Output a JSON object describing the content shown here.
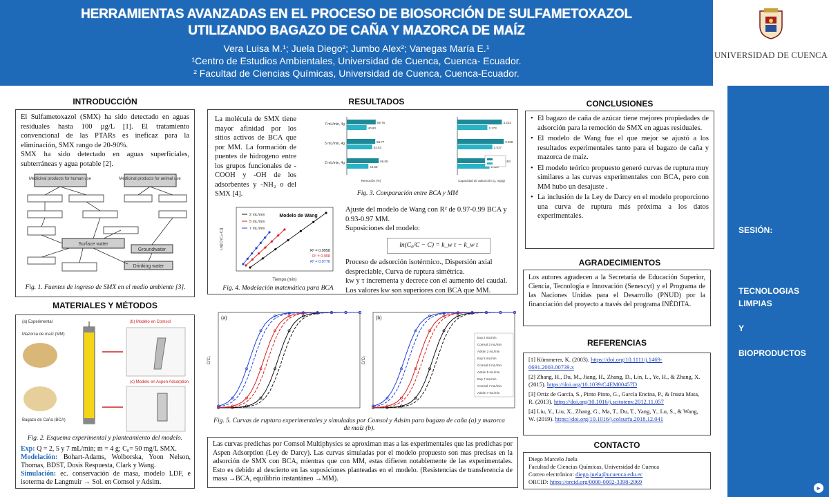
{
  "header": {
    "title_line1": "HERRAMIENTAS AVANZADAS EN EL PROCESO DE BIOSORCIÓN DE SULFAMETOXAZOL",
    "title_line2": "UTILIZANDO BAGAZO DE CAÑA Y MAZORCA DE MAÍZ",
    "authors": "Vera Luisa M.¹; Juela Diego²; Jumbo Alex²; Vanegas María E.¹",
    "affiliation1": "¹Centro de Estudios Ambientales, Universidad de Cuenca, Cuenca- Ecuador.",
    "affiliation2": "² Facultad de Ciencias Químicas, Universidad de Cuenca, Cuenca-Ecuador."
  },
  "logo": {
    "name": "UNIVERSIDAD DE CUENCA"
  },
  "sidebar": {
    "session_label": "SESIÓN:",
    "line1": "TECNOLOGIAS",
    "line2": "LIMPIAS",
    "line3": "Y",
    "line4": "BIOPRODUCTOS"
  },
  "intro": {
    "title": "INTRODUCCIÓN",
    "text1": "El Sulfametoxazol (SMX) ha sido detectado en aguas residuales hasta 100 µg/L [1]. El tratamiento convencional de las PTARs es ineficaz para la eliminación, SMX rango de 20-90%.",
    "text2": "SMX ha sido detectado en aguas superficiales, subterráneas y agua potable [2].",
    "fig1_caption": "Fig. 1. Fuentes de ingreso de SMX en el medio ambiente [3].",
    "fig1_box1": "Medicinal products for human use",
    "fig1_box2": "Medicinal products for animal use",
    "fig1_surface": "Surface water",
    "fig1_ground": "Groundwater",
    "fig1_drinking": "Drinking water"
  },
  "methods": {
    "title": "MATERIALES Y MÉTODOS",
    "fig2_caption": "Fig. 2. Esquema experimental y planteamiento del modelo.",
    "fig2_a": "(a) Experimental",
    "fig2_b": "(b) Modelo en Comsol",
    "fig2_c": "(c) Modelo en Aspen Adsorption",
    "fig2_mm": "Mazorca de maíz (MM)",
    "fig2_bca": "Bagazo de Caña (BCA)",
    "exp_label": "Exp:",
    "exp_text": " Q = 2, 5 y 7 mL/min; m = 4 g; C₀= 50 mg/L SMX.",
    "mod_label": "Modelación:",
    "mod_text": " Bohart-Adams, Wolborska, Yoon Nelson, Thomas, BDST, Dosis Respuesta, Clark y Wang.",
    "sim_label": "Simulación:",
    "sim_text": " ec. conservación de masa, modelo LDF, e isoterma de Langmuir → Sol. en Comsol y Adsim."
  },
  "results": {
    "title": "RESULTADOS",
    "text1": "La molécula de SMX tiene mayor afinidad por los sitios activos de BCA que por MM. La formación de puentes de hidrogeno entre los grupos funcionales de -COOH y -OH de los adsorbentes y -NH₂ o del SMX [4].",
    "fig3_caption": "Fig. 3. Comparación entre BCA y MM",
    "fig4_caption": "Fig. 4. Modelación matemática para BCA",
    "wang_text1": "Ajuste del modelo de Wang con R² de 0.97-0.99 BCA y 0.93-0.97 MM.",
    "wang_text2": "Suposiciones del modelo:",
    "equation": "ln(C₀/C − C) = k_w τ − k_w t",
    "wang_text3": "Proceso de adsorción isotérmico., Dispersión axial despreciable, Curva de ruptura simétrica.",
    "wang_text4": "kw y τ incrementa y decrece con el aumento del caudal. Los valores kw son superiores con BCA que MM.",
    "fig5_caption": "Fig. 5. Curvas de ruptura experimentales y simuladas por Comsol y Adsim para bagazo de caña (a) y mazorca de maíz (b).",
    "discussion": "Las curvas predichas por Comsol Multiphysics se aproximan mas a las experimentales que las predichas por Aspen Adsorption (Ley de Darcy). Las curvas simuladas por el modelo propuesto son mas precisas en la adsorción de SMX con BCA, mientras que con MM, estas difieren notablemente de las experimentales. Esto es debido al descierto en las suposiciones planteadas en el modelo. (Resistencias de transferencia de masa →BCA, equilibrio instantáneo →MM)."
  },
  "conclusions": {
    "title": "CONCLUSIONES",
    "items": [
      "El bagazo de caña de azúcar tiene mejores propiedades de adsorción para la remoción de SMX en aguas residuales.",
      "El modelo de Wang fue el que mejor se ajustó a los resultados experimentales tanto para el bagazo de caña y mazorca de maíz.",
      "El modelo teórico propuesto generó curvas de ruptura muy similares a las curvas experimentales con BCA, pero con MM hubo un desajuste .",
      "La inclusión de la Ley de Darcy en el modelo proporciono una curva de ruptura más próxima a los datos experimentales."
    ]
  },
  "acknowledgements": {
    "title": "AGRADECIMIENTOS",
    "text": "Los autores agradecen a la Secretaría de Educación Superior, Ciencia, Tecnología e Innovación (Senescyt) y el Programa de las Naciones Unidas para el Desarrollo (PNUD) por la financiación del proyecto a través del programa INÉDITA."
  },
  "references": {
    "title": "REFERENCIAS",
    "items": [
      {
        "text": "[1] Kümmerer, K. (2003). ",
        "link": "https://doi.org/10.1111/j.1469-0691.2003.00739.x"
      },
      {
        "text": "[2] Zhang, H., Du, M., Jiang, H., Zhang, D., Lin, L., Ye, H., & Zhang, X. (2015). ",
        "link": "https://doi.org/10.1039/C4EM00457D"
      },
      {
        "text": "[3] Ortiz de García, S., Pinto Pinto, G., García Encina, P., & Irusta Mata, R. (2013). ",
        "link": "https://doi.org/10.1016/j.scitotenv.2012.11.057"
      },
      {
        "text": "[4] Liu, Y., Liu, X., Zhang, G., Ma, T., Du, T., Yang, Y., Lu, S., & Wang, W. (2019). ",
        "link": "https://doi.org/10.1016/j.colsurfa.2018.12.041"
      }
    ]
  },
  "contact": {
    "title": "CONTACTO",
    "name": "Diego Marcelo Juela",
    "faculty": "Facultad de Ciencias Químicas, Universidad de Cuenca",
    "email_label": "Correo electrónico: ",
    "email": "diego.juela@ucuenca.edu.ec",
    "orcid_label": "ORCID: ",
    "orcid": "https://orcid.org/0000-0002-3398-2069"
  },
  "chart_data": [
    {
      "type": "bar",
      "title": "Fig. 3 (left)",
      "categories": [
        "7 mL/min, 4g",
        "5 mL/min, 4g",
        "2 mL/min, 4g"
      ],
      "series": [
        {
          "values": [
            59.75,
            58.77,
            66.08
          ]
        },
        {
          "values": [
            40.93,
            52.53,
            44.68
          ]
        }
      ],
      "xlabel": "Remoción (%)"
    },
    {
      "type": "bar",
      "title": "Fig. 3 (right)",
      "categories": [
        "7 mL/min, 4g",
        "5 mL/min, 4g",
        "2 mL/min, 4g"
      ],
      "series": [
        {
          "values": [
            3.223,
            3.358,
            3.183
          ]
        },
        {
          "values": [
            2.173,
            2.537,
            2.329
          ]
        }
      ],
      "xlabel": "Capacidad de adsorción (q, mg/g)"
    },
    {
      "type": "scatter",
      "title": "Modelo de Wang",
      "xlabel": "Tiempo (min)",
      "ylabel": "Ln[(C/(C₀-C)]",
      "series": [
        {
          "name": "2 mL/min",
          "color": "#111111",
          "r2": "R² = 0.9958"
        },
        {
          "name": "5 mL/min",
          "color": "#d62020",
          "r2": "R² = 0.998"
        },
        {
          "name": "7 mL/min",
          "color": "#2040d6",
          "r2": "R² = 0.9776"
        }
      ]
    },
    {
      "type": "line",
      "title": "(a)",
      "xlabel": "Tiempo (min)",
      "ylabel": "C/C₀"
    },
    {
      "type": "line",
      "title": "(b)",
      "xlabel": "Tiempo (min)",
      "ylabel": "C/C₀",
      "series": [
        {
          "name": "Exp 2 mL/min"
        },
        {
          "name": "Comsol 2 mL/min"
        },
        {
          "name": "Adsim 2 mL/min"
        },
        {
          "name": "Exp 5 mL/min"
        },
        {
          "name": "Comsol 5 mL/min"
        },
        {
          "name": "Adsim 5 mL/min"
        },
        {
          "name": "Exp 7 mL/min"
        },
        {
          "name": "Comsol 7 mL/min"
        },
        {
          "name": "Adsim 7 mL/min"
        }
      ]
    }
  ]
}
